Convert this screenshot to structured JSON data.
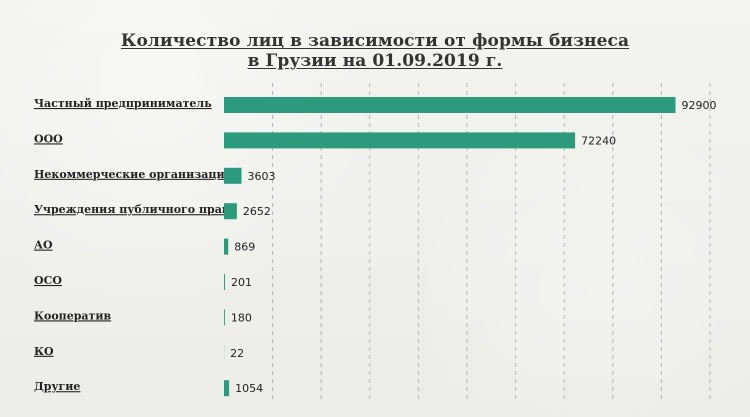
{
  "chart_data": {
    "type": "bar",
    "title": "Количество лиц в зависимости от формы бизнеса в Грузии на 01.09.2019 г.",
    "categories": [
      "Частный предприниматель",
      "ООО",
      "Некоммерческие организации",
      "Учреждения публичного права",
      "АО",
      "ОСО",
      "Кооператив",
      "КО",
      "Другие"
    ],
    "values": [
      92900,
      72240,
      3603,
      2652,
      869,
      201,
      180,
      22,
      1054
    ],
    "xlim": [
      0,
      100000
    ],
    "grid": true,
    "orientation": "horizontal",
    "colors": {
      "bar": "#2e9a7c",
      "grid": "#9b9b9b",
      "text": "#222222"
    }
  }
}
